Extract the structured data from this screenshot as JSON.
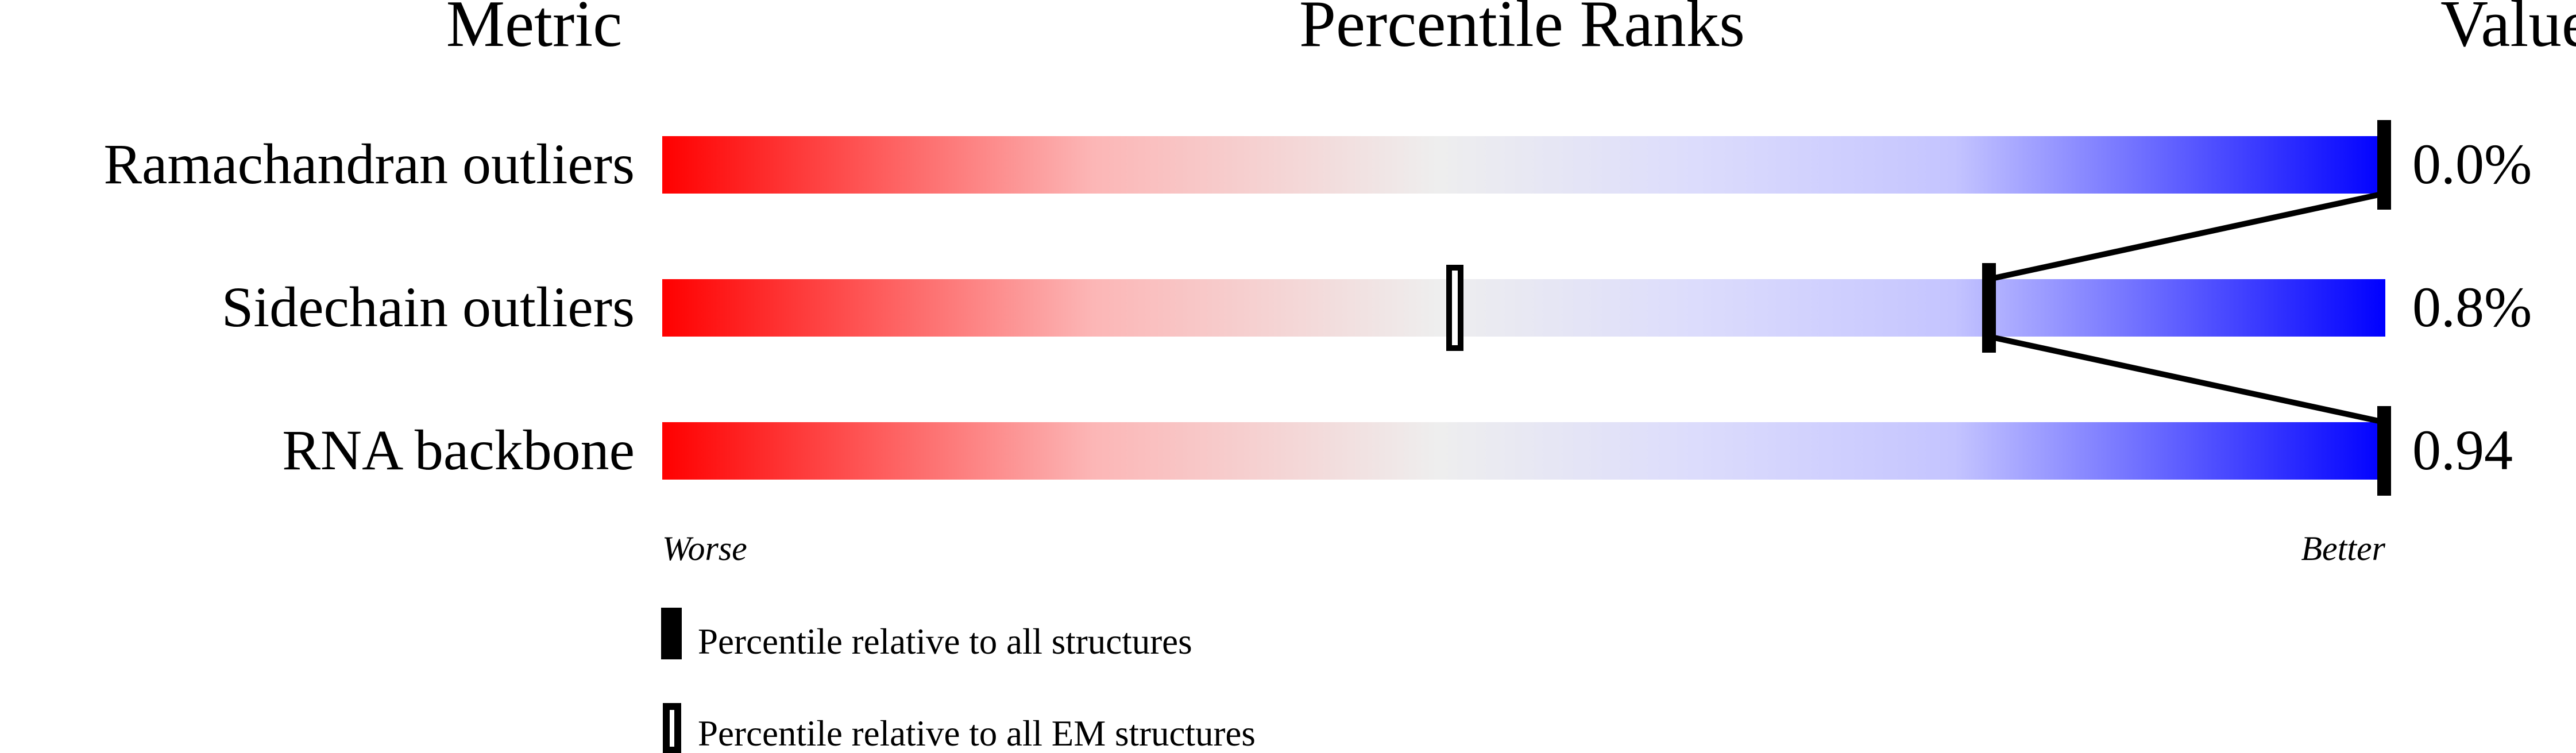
{
  "chart_data": {
    "type": "percentile-bar",
    "headers": {
      "metric": "Metric",
      "ranks": "Percentile Ranks",
      "value": "Value"
    },
    "axis": {
      "left_label": "Worse",
      "right_label": "Better",
      "range": [
        0,
        100
      ]
    },
    "gradient_colors": [
      "#ff0000",
      "#eeeeee",
      "#ddddff",
      "#0000ff"
    ],
    "rows": [
      {
        "metric": "Ramachandran outliers",
        "value": "0.0%",
        "percentile_all": 100,
        "percentile_em": null
      },
      {
        "metric": "Sidechain outliers",
        "value": "0.8%",
        "percentile_all": 77,
        "percentile_em": 46
      },
      {
        "metric": "RNA backbone",
        "value": "0.94",
        "percentile_all": 100,
        "percentile_em": null
      }
    ],
    "legend": [
      {
        "marker": "filled",
        "label": "Percentile relative to all structures"
      },
      {
        "marker": "open",
        "label": "Percentile relative to all EM structures"
      }
    ]
  }
}
